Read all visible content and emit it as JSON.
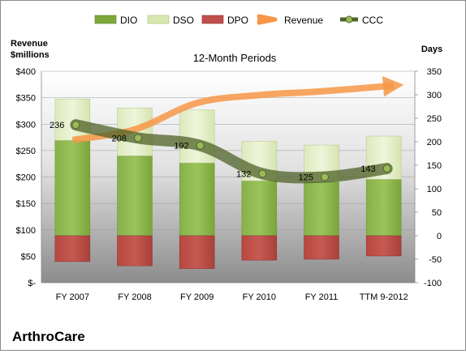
{
  "chart_data": {
    "type": "bar",
    "title": "12-Month Periods",
    "company": "ArthroCare",
    "left_axis_title": [
      "Revenue",
      "$millions"
    ],
    "right_axis_title": "Days",
    "categories": [
      "FY 2007",
      "FY 2008",
      "FY 2009",
      "FY 2010",
      "FY 2011",
      "TTM 9-2012"
    ],
    "left_axis": {
      "min": 0,
      "max": 400,
      "step": 50,
      "tick_labels": [
        "$-",
        "$50",
        "$100",
        "$150",
        "$200",
        "$250",
        "$300",
        "$350",
        "$400"
      ]
    },
    "right_axis": {
      "min": -100,
      "max": 350,
      "step": 50,
      "tick_labels": [
        "-100",
        "-50",
        "0",
        "50",
        "100",
        "150",
        "200",
        "250",
        "300",
        "350"
      ]
    },
    "legend_position": "top",
    "series": [
      {
        "name": "DIO",
        "axis": "right",
        "kind": "stacked-bar",
        "color": "#7ea83c",
        "values": [
          203,
          170,
          155,
          117,
          115,
          120
        ]
      },
      {
        "name": "DSO",
        "axis": "right",
        "kind": "stacked-bar",
        "color": "#d8e8b0",
        "values": [
          88,
          102,
          113,
          84,
          78,
          92
        ]
      },
      {
        "name": "DPO",
        "axis": "right",
        "kind": "negative-bar",
        "color": "#c0504d",
        "values": [
          -55,
          -64,
          -70,
          -52,
          -50,
          -43
        ]
      },
      {
        "name": "Revenue",
        "axis": "left",
        "kind": "line",
        "color": "#f79646",
        "values": [
          270,
          290,
          340,
          355,
          362,
          373
        ]
      },
      {
        "name": "CCC",
        "axis": "right",
        "kind": "line",
        "color": "#4f6228",
        "values": [
          236,
          208,
          192,
          132,
          125,
          143
        ],
        "data_labels": [
          "236",
          "208",
          "192",
          "132",
          "125",
          "143"
        ]
      }
    ]
  }
}
